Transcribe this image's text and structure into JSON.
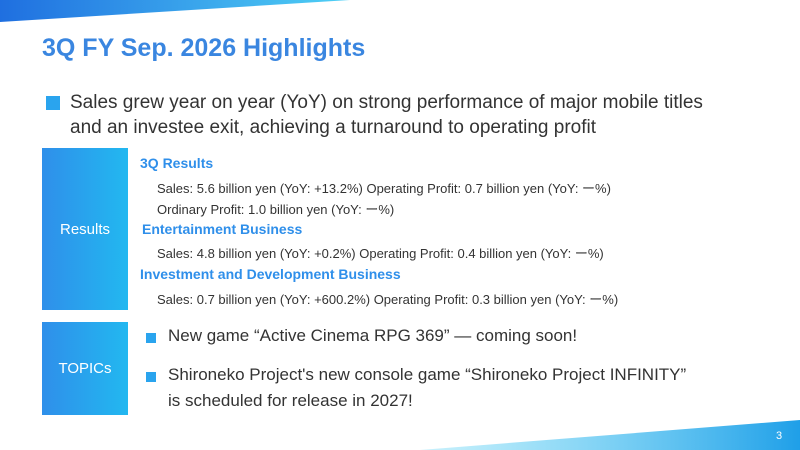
{
  "header": {
    "title": "3Q FY Sep. 2026 Highlights"
  },
  "headline": {
    "lines": [
      "Sales grew year on year (YoY) on strong performance of major mobile titles",
      "and an investee exit, achieving a turnaround to operating profit"
    ]
  },
  "results": {
    "label": "Results",
    "sections": [
      {
        "heading": "3Q Results",
        "lines": [
          "Sales: 5.6 billion yen (YoY: +13.2%) Operating Profit: 0.7 billion yen (YoY: ー%)",
          "Ordinary Profit: 1.0 billion yen (YoY: ー%)"
        ]
      },
      {
        "heading": "Entertainment Business",
        "lines": [
          "Sales: 4.8 billion yen (YoY: +0.2%) Operating Profit: 0.4 billion yen (YoY: ー%)"
        ]
      },
      {
        "heading": "Investment and Development Business",
        "lines": [
          "Sales: 0.7 billion yen (YoY: +600.2%) Operating Profit: 0.3 billion yen (YoY: ー%)"
        ]
      }
    ]
  },
  "topics": {
    "label": "TOPICs",
    "items": [
      {
        "lines": [
          "New game “Active Cinema RPG 369” ― coming soon!"
        ]
      },
      {
        "lines": [
          "Shironeko Project's new console game “Shironeko Project INFINITY”",
          "is scheduled for release in 2027!"
        ]
      }
    ]
  },
  "footer": {
    "page": "3"
  }
}
